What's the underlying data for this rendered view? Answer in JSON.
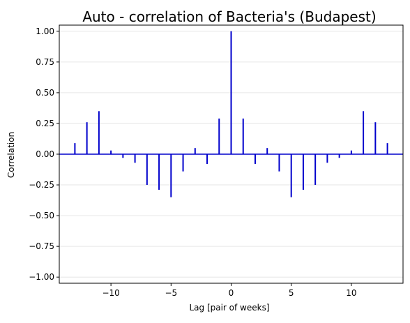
{
  "chart_data": {
    "type": "bar",
    "title": "Auto - correlation of Bacteria's (Budapest)",
    "xlabel": "Lag [pair of weeks]",
    "ylabel": "Correlation",
    "xlim": [
      -14.3,
      14.3
    ],
    "ylim": [
      -1.05,
      1.05
    ],
    "x_ticks": [
      -10,
      -5,
      0,
      5,
      10
    ],
    "x_tick_labels": [
      "−10",
      "−5",
      "0",
      "5",
      "10"
    ],
    "y_ticks": [
      1.0,
      0.75,
      0.5,
      0.25,
      0.0,
      -0.25,
      -0.5,
      -0.75,
      -1.0
    ],
    "y_tick_labels": [
      "1.00",
      "0.75",
      "0.50",
      "0.25",
      "0.00",
      "−0.25",
      "−0.50",
      "−0.75",
      "−1.00"
    ],
    "grid": "horizontal",
    "legend": "none",
    "series": [
      {
        "x": [
          -13,
          -12,
          -11,
          -10,
          -9,
          -8,
          -7,
          -6,
          -5,
          -4,
          -3,
          -2,
          -1,
          0,
          1,
          2,
          3,
          4,
          5,
          6,
          7,
          8,
          9,
          10,
          11,
          12,
          13
        ],
        "values": [
          0.09,
          0.26,
          0.35,
          0.03,
          -0.03,
          -0.07,
          -0.25,
          -0.29,
          -0.35,
          -0.14,
          0.05,
          -0.08,
          0.29,
          1.0,
          0.29,
          -0.08,
          0.05,
          -0.14,
          -0.35,
          -0.29,
          -0.25,
          -0.07,
          -0.03,
          0.03,
          0.35,
          0.26,
          0.09
        ]
      }
    ],
    "colors": {
      "stem": "#0000cc",
      "zero_line": "#0000cc",
      "grid": "#e6e6e6",
      "axes": "#000000"
    }
  }
}
